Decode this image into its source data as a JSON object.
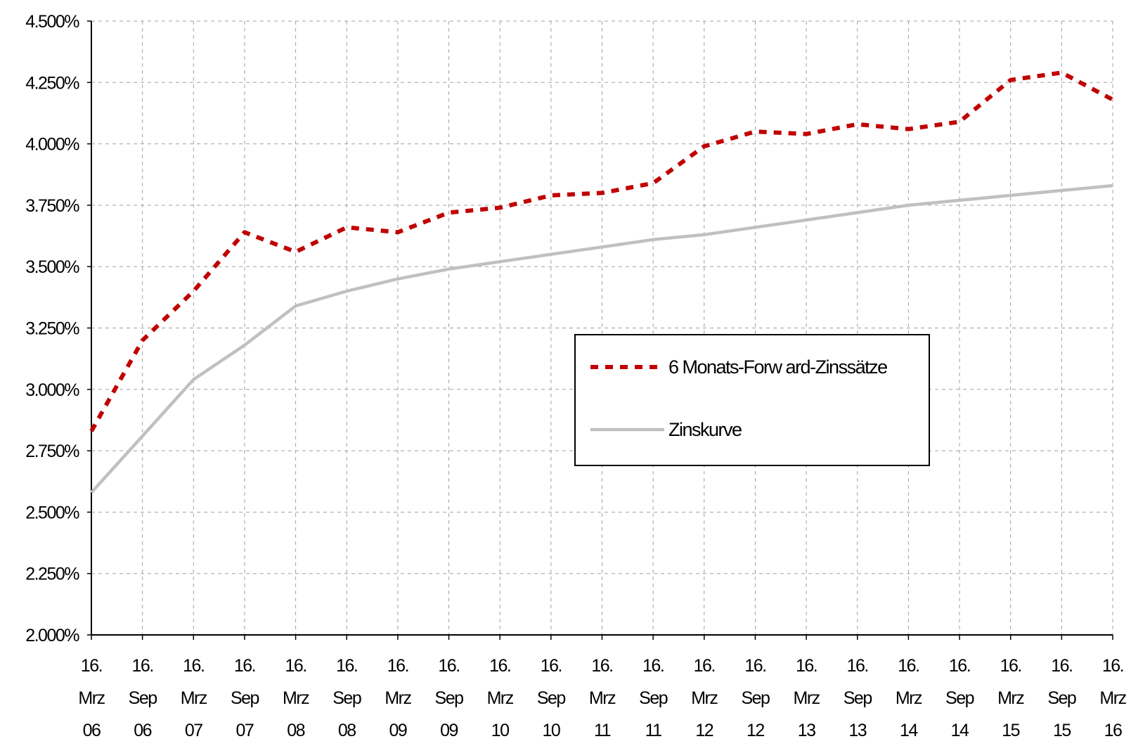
{
  "chart_data": {
    "type": "line",
    "title": "",
    "xlabel": "",
    "ylabel": "",
    "ylim": [
      0.02,
      0.045
    ],
    "y_tick_values": [
      0.02,
      0.0225,
      0.025,
      0.0275,
      0.03,
      0.0325,
      0.035,
      0.0375,
      0.04,
      0.0425,
      0.045
    ],
    "y_tick_labels": [
      "2.000%",
      "2.250%",
      "2.500%",
      "2.750%",
      "3.000%",
      "3.250%",
      "3.500%",
      "3.750%",
      "4.000%",
      "4.250%",
      "4.500%"
    ],
    "x_categories": [
      [
        "16.",
        "Mrz",
        "06"
      ],
      [
        "16.",
        "Sep",
        "06"
      ],
      [
        "16.",
        "Mrz",
        "07"
      ],
      [
        "16.",
        "Sep",
        "07"
      ],
      [
        "16.",
        "Mrz",
        "08"
      ],
      [
        "16.",
        "Sep",
        "08"
      ],
      [
        "16.",
        "Mrz",
        "09"
      ],
      [
        "16.",
        "Sep",
        "09"
      ],
      [
        "16.",
        "Mrz",
        "10"
      ],
      [
        "16.",
        "Sep",
        "10"
      ],
      [
        "16.",
        "Mrz",
        "11"
      ],
      [
        "16.",
        "Sep",
        "11"
      ],
      [
        "16.",
        "Mrz",
        "12"
      ],
      [
        "16.",
        "Sep",
        "12"
      ],
      [
        "16.",
        "Mrz",
        "13"
      ],
      [
        "16.",
        "Sep",
        "13"
      ],
      [
        "16.",
        "Mrz",
        "14"
      ],
      [
        "16.",
        "Sep",
        "14"
      ],
      [
        "16.",
        "Mrz",
        "15"
      ],
      [
        "16.",
        "Sep",
        "15"
      ],
      [
        "16.",
        "Mrz",
        "16"
      ]
    ],
    "grid": true,
    "legend_position": "center-right",
    "series": [
      {
        "name": "6 Monats-Forw ard-Zinssätze",
        "color": "#c00000",
        "style": "dotted",
        "values": [
          0.0283,
          0.032,
          0.034,
          0.0364,
          0.0356,
          0.0366,
          0.0364,
          0.0372,
          0.0374,
          0.0379,
          0.038,
          0.0384,
          0.0399,
          0.0405,
          0.0404,
          0.0408,
          0.0406,
          0.0409,
          0.0426,
          0.0429,
          0.0418
        ]
      },
      {
        "name": "Zinskurve",
        "color": "#c0c0c0",
        "style": "solid",
        "values": [
          0.0258,
          0.0281,
          0.0304,
          0.0318,
          0.0334,
          0.034,
          0.0345,
          0.0349,
          0.0352,
          0.0355,
          0.0358,
          0.0361,
          0.0363,
          0.0366,
          0.0369,
          0.0372,
          0.0375,
          0.0377,
          0.0379,
          0.0381,
          0.0383
        ]
      }
    ]
  }
}
